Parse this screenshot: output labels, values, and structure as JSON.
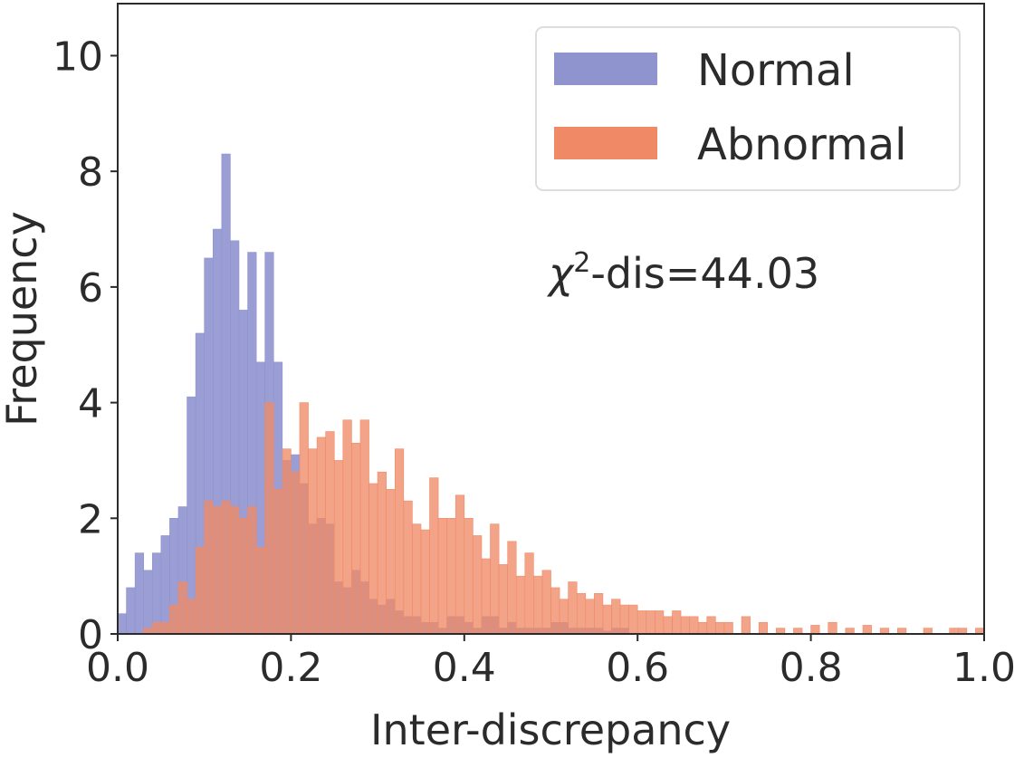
{
  "chart_data": {
    "type": "histogram",
    "xlabel": "Inter-discrepancy",
    "ylabel": "Frequency",
    "xlim": [
      0.0,
      1.0
    ],
    "ylim": [
      0,
      10.9
    ],
    "xticks": [
      "0.0",
      "0.2",
      "0.4",
      "0.6",
      "0.8",
      "1.0"
    ],
    "yticks": [
      "0",
      "2",
      "4",
      "6",
      "8",
      "10"
    ],
    "bin_width": 0.01,
    "legend_position": "upper-right",
    "annotation": {
      "symbol": "χ",
      "superscript": "2",
      "text": "-dis=44.03"
    },
    "series": [
      {
        "name": "Normal",
        "color": "#8f94cf",
        "x_start": [
          0.0,
          0.01,
          0.02,
          0.03,
          0.04,
          0.05,
          0.06,
          0.07,
          0.08,
          0.09,
          0.1,
          0.11,
          0.12,
          0.13,
          0.14,
          0.15,
          0.16,
          0.17,
          0.18,
          0.19,
          0.2,
          0.21,
          0.22,
          0.23,
          0.24,
          0.25,
          0.26,
          0.27,
          0.28,
          0.29,
          0.3,
          0.31,
          0.32,
          0.33,
          0.34,
          0.35,
          0.36,
          0.37,
          0.38,
          0.39,
          0.4,
          0.41,
          0.42,
          0.43,
          0.44,
          0.45,
          0.46,
          0.47,
          0.48,
          0.49,
          0.5,
          0.51,
          0.52,
          0.53,
          0.54,
          0.55,
          0.56,
          0.57,
          0.58
        ],
        "values": [
          0.35,
          0.8,
          1.4,
          1.1,
          1.4,
          1.7,
          2.0,
          2.2,
          4.1,
          5.2,
          6.5,
          7.0,
          8.3,
          6.8,
          5.6,
          6.6,
          4.7,
          6.6,
          4.7,
          3.0,
          3.1,
          2.6,
          1.9,
          2.0,
          1.9,
          0.9,
          0.8,
          1.1,
          0.9,
          0.6,
          0.5,
          0.6,
          0.4,
          0.3,
          0.3,
          0.2,
          0.2,
          0.1,
          0.3,
          0.3,
          0.2,
          0.1,
          0.3,
          0.3,
          0.1,
          0.2,
          0.1,
          0.1,
          0.1,
          0.1,
          0.2,
          0.2,
          0.1,
          0.1,
          0.1,
          0.1,
          0.05,
          0.1,
          0.1
        ]
      },
      {
        "name": "Abnormal",
        "color": "#f08a66",
        "x_start": [
          0.03,
          0.04,
          0.05,
          0.06,
          0.07,
          0.08,
          0.09,
          0.1,
          0.11,
          0.12,
          0.13,
          0.14,
          0.15,
          0.16,
          0.17,
          0.18,
          0.19,
          0.2,
          0.21,
          0.22,
          0.23,
          0.24,
          0.25,
          0.26,
          0.27,
          0.28,
          0.29,
          0.3,
          0.31,
          0.32,
          0.33,
          0.34,
          0.35,
          0.36,
          0.37,
          0.38,
          0.39,
          0.4,
          0.41,
          0.42,
          0.43,
          0.44,
          0.45,
          0.46,
          0.47,
          0.48,
          0.49,
          0.5,
          0.51,
          0.52,
          0.53,
          0.54,
          0.55,
          0.56,
          0.57,
          0.58,
          0.59,
          0.6,
          0.61,
          0.62,
          0.63,
          0.64,
          0.65,
          0.66,
          0.67,
          0.68,
          0.69,
          0.7,
          0.72,
          0.74,
          0.76,
          0.78,
          0.8,
          0.82,
          0.84,
          0.86,
          0.88,
          0.9,
          0.93,
          0.96,
          0.97,
          0.99
        ],
        "values": [
          0.1,
          0.2,
          0.2,
          0.5,
          0.9,
          0.6,
          1.5,
          2.3,
          2.2,
          2.3,
          2.2,
          2.0,
          2.2,
          1.5,
          4.0,
          2.5,
          3.2,
          2.8,
          4.0,
          3.2,
          3.4,
          3.5,
          3.0,
          3.7,
          3.3,
          3.7,
          2.6,
          2.8,
          2.5,
          3.2,
          2.3,
          1.9,
          1.8,
          2.7,
          2.0,
          2.0,
          2.4,
          2.0,
          1.7,
          1.3,
          1.9,
          1.2,
          1.6,
          1.0,
          1.4,
          1.0,
          1.1,
          0.8,
          0.6,
          0.9,
          0.7,
          0.6,
          0.7,
          0.5,
          0.6,
          0.5,
          0.5,
          0.4,
          0.4,
          0.4,
          0.3,
          0.4,
          0.3,
          0.3,
          0.2,
          0.3,
          0.2,
          0.2,
          0.3,
          0.2,
          0.1,
          0.1,
          0.15,
          0.2,
          0.1,
          0.15,
          0.1,
          0.1,
          0.1,
          0.1,
          0.1,
          0.1
        ]
      }
    ]
  }
}
